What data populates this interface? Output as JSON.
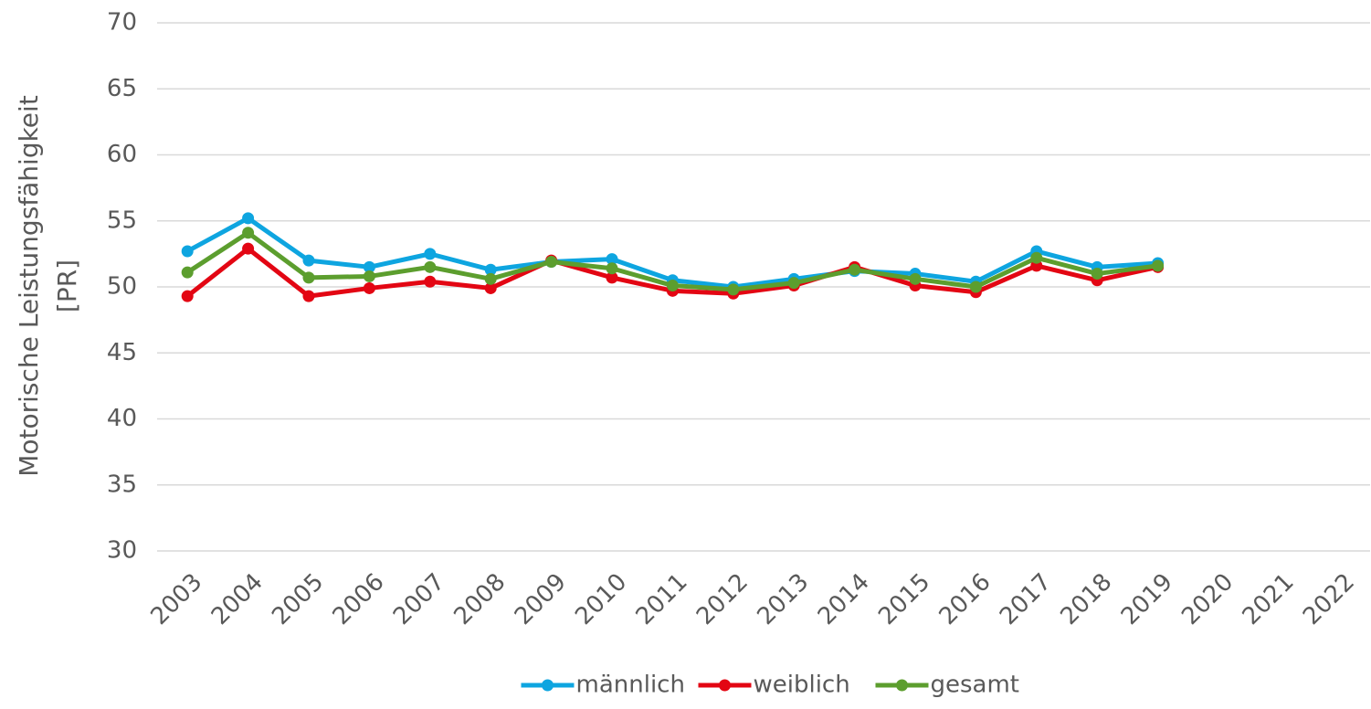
{
  "chart_data": {
    "type": "line",
    "ylabel": [
      "Motorische Leistungsfähigkeit",
      "[PR]"
    ],
    "categories": [
      "2003",
      "2004",
      "2005",
      "2006",
      "2007",
      "2008",
      "2009",
      "2010",
      "2011",
      "2012",
      "2013",
      "2014",
      "2015",
      "2016",
      "2017",
      "2018",
      "2019",
      "2020",
      "2021",
      "2022"
    ],
    "series": [
      {
        "name": "männlich",
        "color": "#0ea5e0",
        "values": [
          52.7,
          55.2,
          52.0,
          51.5,
          52.5,
          51.3,
          51.9,
          52.1,
          50.5,
          50.0,
          50.6,
          51.2,
          51.0,
          50.4,
          52.7,
          51.5,
          51.8,
          null,
          null,
          null
        ]
      },
      {
        "name": "weiblich",
        "color": "#e30613",
        "values": [
          49.3,
          52.9,
          49.3,
          49.9,
          50.4,
          49.9,
          52.0,
          50.7,
          49.7,
          49.5,
          50.1,
          51.5,
          50.1,
          49.6,
          51.6,
          50.5,
          51.5,
          null,
          null,
          null
        ]
      },
      {
        "name": "gesamt",
        "color": "#5c9e2e",
        "values": [
          51.1,
          54.1,
          50.7,
          50.8,
          51.5,
          50.6,
          51.9,
          51.4,
          50.1,
          49.8,
          50.3,
          51.3,
          50.6,
          50.0,
          52.2,
          51.0,
          51.6,
          null,
          null,
          null
        ]
      }
    ],
    "ylim": [
      30,
      70
    ],
    "yticks": [
      30,
      35,
      40,
      45,
      50,
      55,
      60,
      65,
      70
    ],
    "grid": true,
    "legend": "bottom"
  }
}
